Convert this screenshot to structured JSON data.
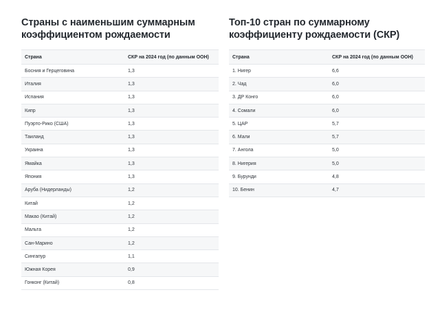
{
  "left": {
    "title": "Страны с наименьшим суммарным коэффициентом рождаемости",
    "header": {
      "country": "Страна",
      "value": "СКР на 2024 год (по данным ООН)"
    },
    "rows": [
      {
        "country": "Босния и Герцеговина",
        "value": "1,3"
      },
      {
        "country": "Италия",
        "value": "1,3"
      },
      {
        "country": "Испания",
        "value": "1,3"
      },
      {
        "country": "Кипр",
        "value": "1,3"
      },
      {
        "country": "Пуэрто-Рико (США)",
        "value": "1,3"
      },
      {
        "country": "Таиланд",
        "value": "1,3"
      },
      {
        "country": "Украина",
        "value": "1,3"
      },
      {
        "country": "Ямайка",
        "value": "1,3"
      },
      {
        "country": "Япония",
        "value": "1,3"
      },
      {
        "country": "Аруба (Нидерланды)",
        "value": "1,2"
      },
      {
        "country": "Китай",
        "value": "1,2"
      },
      {
        "country": "Макао (Китай)",
        "value": "1,2"
      },
      {
        "country": "Мальта",
        "value": "1,2"
      },
      {
        "country": "Сан-Марино",
        "value": "1,2"
      },
      {
        "country": "Сингапур",
        "value": "1,1"
      },
      {
        "country": "Южная Корея",
        "value": "0,9"
      },
      {
        "country": "Гонконг (Китай)",
        "value": "0,8"
      }
    ]
  },
  "right": {
    "title": "Топ-10 стран по суммарному коэффициенту рождаемости (СКР)",
    "header": {
      "country": "Страна",
      "value": "СКР на 2024 год (по данным ООН)"
    },
    "rows": [
      {
        "country": "1. Нигер",
        "value": "6,6"
      },
      {
        "country": "2. Чад",
        "value": "6,0"
      },
      {
        "country": "3. ДР Конго",
        "value": "6,0"
      },
      {
        "country": "4. Сомали",
        "value": "6,0"
      },
      {
        "country": "5. ЦАР",
        "value": "5,7"
      },
      {
        "country": "6. Мали",
        "value": "5,7"
      },
      {
        "country": "7. Ангола",
        "value": "5,0"
      },
      {
        "country": "8. Нигерия",
        "value": "5,0"
      },
      {
        "country": "9. Бурунди",
        "value": "4,8"
      },
      {
        "country": "10. Бенин",
        "value": "4,7"
      }
    ]
  }
}
